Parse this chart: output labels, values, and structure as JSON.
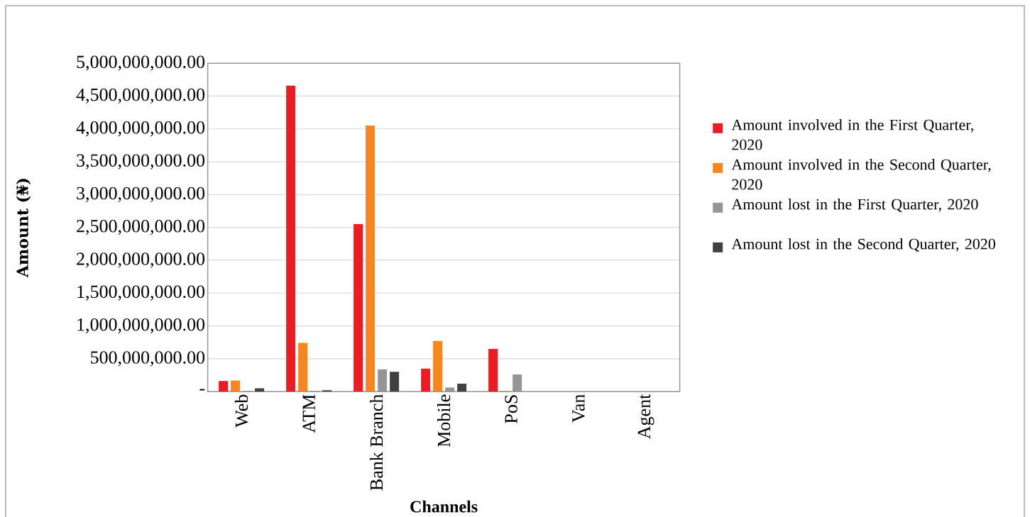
{
  "chart_data": {
    "type": "bar",
    "xlabel": "Channels",
    "ylabel": "Amount (₦)",
    "categories": [
      "Web",
      "ATM",
      "Bank Branch",
      "Mobile",
      "PoS",
      "Van",
      "Agent"
    ],
    "series": [
      {
        "name": "Amount involved in the First Quarter, 2020",
        "color": "#ed1c24",
        "values": [
          160000000,
          4660000000,
          2550000000,
          350000000,
          650000000,
          0,
          0
        ]
      },
      {
        "name": "Amount involved in the Second Quarter, 2020",
        "color": "#f7861e",
        "values": [
          170000000,
          740000000,
          4050000000,
          770000000,
          10000000,
          0,
          0
        ]
      },
      {
        "name": "Amount lost in the First Quarter, 2020",
        "color": "#939598",
        "values": [
          10000000,
          10000000,
          340000000,
          60000000,
          260000000,
          0,
          0
        ]
      },
      {
        "name": "Amount lost in the Second Quarter, 2020",
        "color": "#404041",
        "values": [
          50000000,
          20000000,
          300000000,
          120000000,
          0,
          0,
          0
        ]
      }
    ],
    "ylim": [
      0,
      5000000000
    ],
    "yticks": [
      {
        "value": 0,
        "label": "-"
      },
      {
        "value": 500000000,
        "label": "500,000,000.00"
      },
      {
        "value": 1000000000,
        "label": "1,000,000,000.00"
      },
      {
        "value": 1500000000,
        "label": "1,500,000,000.00"
      },
      {
        "value": 2000000000,
        "label": "2,000,000,000.00"
      },
      {
        "value": 2500000000,
        "label": "2,500,000,000.00"
      },
      {
        "value": 3000000000,
        "label": "3,000,000,000.00"
      },
      {
        "value": 3500000000,
        "label": "3,500,000,000.00"
      },
      {
        "value": 4000000000,
        "label": "4,000,000,000.00"
      },
      {
        "value": 4500000000,
        "label": "4,500,000,000.00"
      },
      {
        "value": 5000000000,
        "label": "5,000,000,000.00"
      }
    ],
    "grid": "y",
    "legend": "right"
  }
}
